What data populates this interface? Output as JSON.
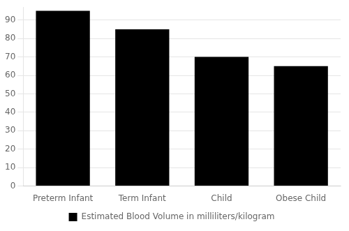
{
  "chart_data": {
    "type": "bar",
    "categories": [
      "Preterm Infant",
      "Term Infant",
      "Child",
      "Obese Child"
    ],
    "series": [
      {
        "name": "Estimated Blood Volume in milliliters/kilogram",
        "color": "#000000",
        "values": [
          95,
          85,
          70,
          65
        ]
      }
    ],
    "ylim": [
      0,
      97
    ],
    "yticks": [
      0,
      10,
      20,
      30,
      40,
      50,
      60,
      70,
      80,
      90
    ],
    "grid": true,
    "legend": "bottom"
  }
}
